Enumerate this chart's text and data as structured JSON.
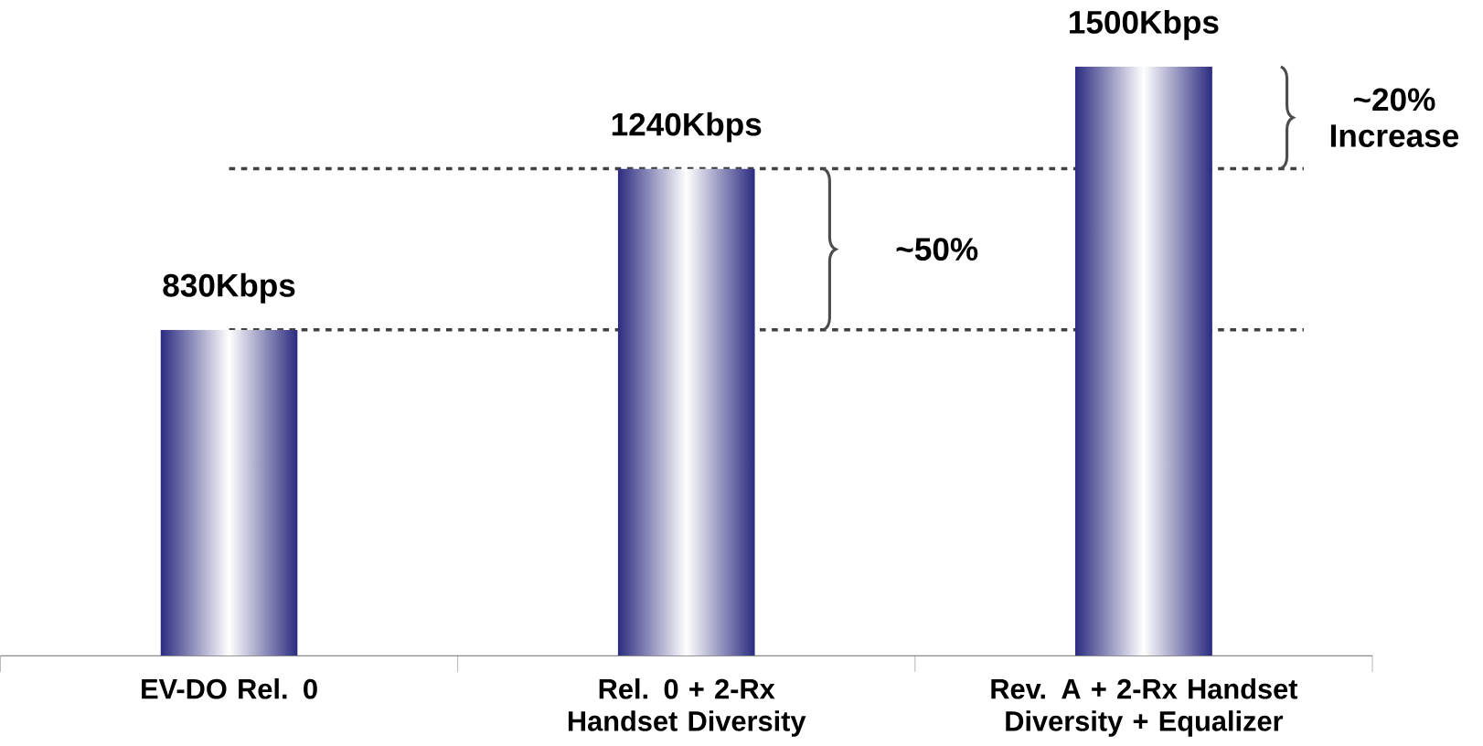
{
  "chart_data": {
    "type": "bar",
    "categories": [
      "EV-DO Rel. 0",
      "Rel. 0 + 2-Rx Handset Diversity",
      "Rev. A + 2-Rx Handset Diversity + Equalizer"
    ],
    "values": [
      830,
      1240,
      1500
    ],
    "value_labels": [
      "830Kbps",
      "1240Kbps",
      "1500Kbps"
    ],
    "color": "#2b2b80",
    "ref_lines": [
      {
        "axis": "y",
        "value": 830,
        "line_style": "dashed",
        "color": "#404040"
      },
      {
        "axis": "y",
        "value": 1240,
        "line_style": "dashed",
        "color": "#404040"
      }
    ],
    "annotations": [
      "~50%",
      "~20% Increase"
    ],
    "grid": false
  }
}
